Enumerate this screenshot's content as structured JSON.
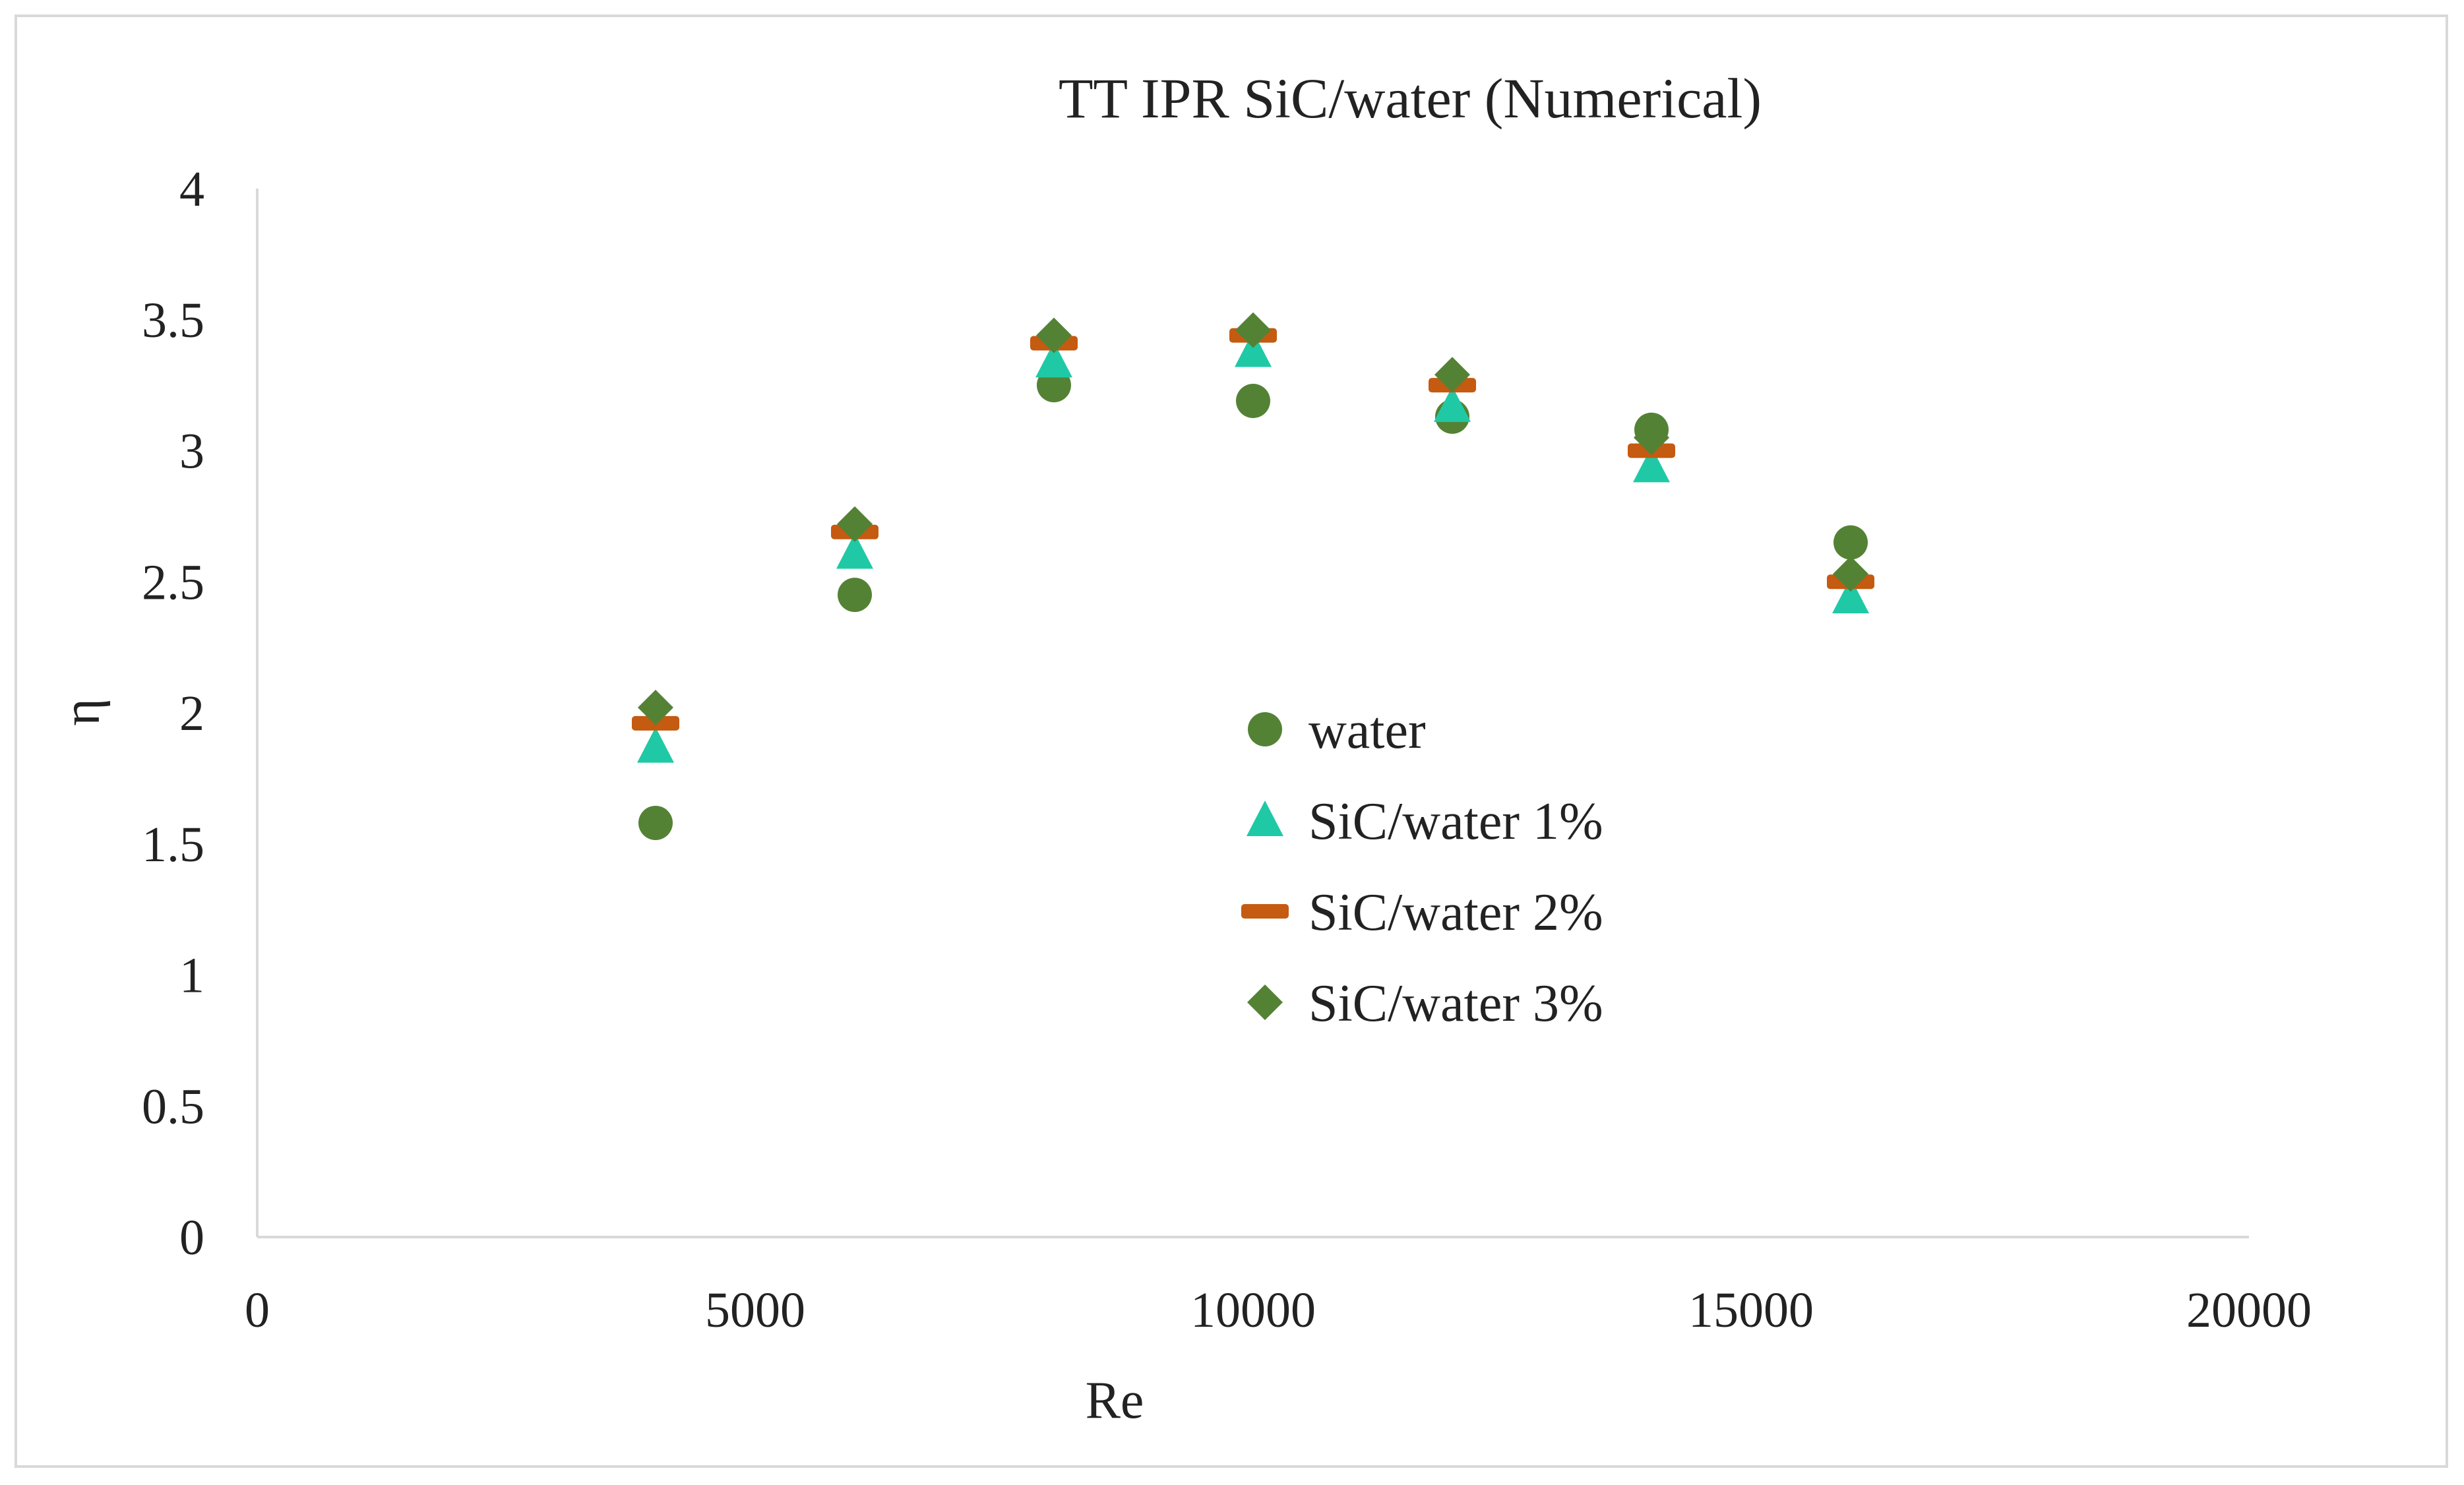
{
  "chart_data": {
    "type": "scatter",
    "title": "TT IPR SiC/water (Numerical)",
    "xlabel": "Re",
    "ylabel": "η",
    "xlim": [
      0,
      20000
    ],
    "ylim": [
      0,
      4
    ],
    "x_ticks": [
      "0",
      "5000",
      "10000",
      "15000",
      "20000"
    ],
    "y_ticks": [
      "0",
      "0.5",
      "1",
      "1.5",
      "2",
      "2.5",
      "3",
      "3.5",
      "4"
    ],
    "grid": false,
    "legend_position": "center",
    "series": [
      {
        "name": "water",
        "marker": "circle",
        "color": "#548235",
        "points": [
          [
            4000,
            1.58
          ],
          [
            6000,
            2.45
          ],
          [
            8000,
            3.25
          ],
          [
            10000,
            3.19
          ],
          [
            12000,
            3.13
          ],
          [
            14000,
            3.08
          ],
          [
            16000,
            2.65
          ]
        ]
      },
      {
        "name": "SiC/water 1%",
        "marker": "triangle",
        "color": "#20C9A6",
        "points": [
          [
            4000,
            1.87
          ],
          [
            6000,
            2.61
          ],
          [
            8000,
            3.34
          ],
          [
            10000,
            3.38
          ],
          [
            12000,
            3.17
          ],
          [
            14000,
            2.94
          ],
          [
            16000,
            2.44
          ]
        ]
      },
      {
        "name": "SiC/water 2%",
        "marker": "dash",
        "color": "#C55A11",
        "points": [
          [
            4000,
            1.96
          ],
          [
            6000,
            2.69
          ],
          [
            8000,
            3.41
          ],
          [
            10000,
            3.44
          ],
          [
            12000,
            3.25
          ],
          [
            14000,
            3.0
          ],
          [
            16000,
            2.5
          ]
        ]
      },
      {
        "name": "SiC/water 3%",
        "marker": "diamond",
        "color": "#548235",
        "points": [
          [
            4000,
            2.02
          ],
          [
            6000,
            2.72
          ],
          [
            8000,
            3.44
          ],
          [
            10000,
            3.46
          ],
          [
            12000,
            3.29
          ],
          [
            14000,
            3.05
          ],
          [
            16000,
            2.53
          ]
        ]
      }
    ]
  }
}
